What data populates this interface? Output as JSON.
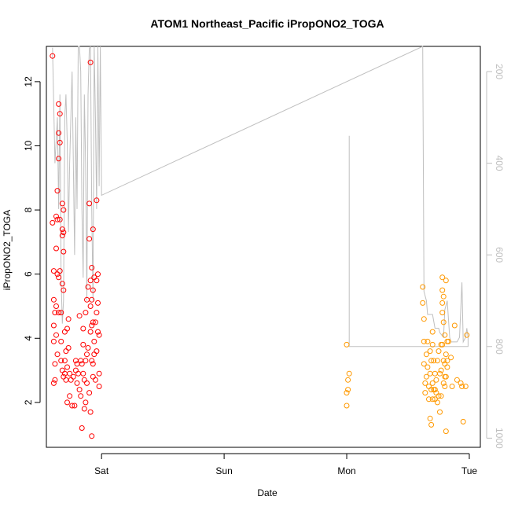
{
  "chart_data": {
    "type": "scatter",
    "title": "ATOM1 Northeast_Pacific iPropONO2_TOGA",
    "xlabel": "Date",
    "ylabel": "iPropONO2_TOGA",
    "x_ticks": [
      "Sat",
      "Sun",
      "Mon",
      "Tue"
    ],
    "x_tick_days": [
      1,
      2,
      3,
      4
    ],
    "xlim_days": [
      0.55,
      4.09
    ],
    "ylim": [
      0.6,
      13.1
    ],
    "y_ticks": [
      "2",
      "4",
      "6",
      "8",
      "10",
      "12"
    ],
    "y_tick_values": [
      2,
      4,
      6,
      8,
      10,
      12
    ],
    "right_axis": {
      "reversed": true,
      "lim": [
        145,
        1020
      ],
      "ticks": [
        "200",
        "400",
        "600",
        "800",
        "1000"
      ],
      "tick_values": [
        200,
        400,
        600,
        800,
        1000
      ],
      "color": "#bfbfbf"
    },
    "colors": {
      "series_1": "#ff0000",
      "series_2": "#ff9900",
      "pressure_line": "#bfbfbf"
    },
    "series": [
      {
        "points": [
          [
            0.6,
            12.8
          ],
          [
            0.6,
            7.6
          ],
          [
            0.61,
            6.1
          ],
          [
            0.61,
            5.2
          ],
          [
            0.61,
            4.4
          ],
          [
            0.61,
            3.9
          ],
          [
            0.61,
            2.6
          ],
          [
            0.62,
            4.8
          ],
          [
            0.62,
            3.2
          ],
          [
            0.62,
            2.7
          ],
          [
            0.63,
            7.8
          ],
          [
            0.63,
            6.8
          ],
          [
            0.63,
            5.0
          ],
          [
            0.63,
            4.1
          ],
          [
            0.64,
            8.6
          ],
          [
            0.64,
            7.7
          ],
          [
            0.64,
            6.0
          ],
          [
            0.64,
            3.5
          ],
          [
            0.65,
            11.3
          ],
          [
            0.65,
            10.4
          ],
          [
            0.65,
            9.6
          ],
          [
            0.65,
            5.9
          ],
          [
            0.65,
            4.8
          ],
          [
            0.66,
            11.0
          ],
          [
            0.66,
            10.1
          ],
          [
            0.66,
            7.7
          ],
          [
            0.66,
            6.1
          ],
          [
            0.67,
            3.3
          ],
          [
            0.67,
            4.8
          ],
          [
            0.67,
            3.9
          ],
          [
            0.68,
            8.2
          ],
          [
            0.68,
            7.4
          ],
          [
            0.68,
            7.2
          ],
          [
            0.68,
            5.7
          ],
          [
            0.68,
            3.0
          ],
          [
            0.69,
            8.0
          ],
          [
            0.69,
            7.3
          ],
          [
            0.69,
            6.7
          ],
          [
            0.69,
            5.5
          ],
          [
            0.69,
            2.8
          ],
          [
            0.7,
            4.2
          ],
          [
            0.7,
            3.3
          ],
          [
            0.7,
            2.9
          ],
          [
            0.71,
            3.6
          ],
          [
            0.71,
            2.7
          ],
          [
            0.72,
            4.3
          ],
          [
            0.72,
            3.1
          ],
          [
            0.72,
            2.0
          ],
          [
            0.73,
            4.6
          ],
          [
            0.73,
            3.7
          ],
          [
            0.74,
            2.9
          ],
          [
            0.74,
            2.2
          ],
          [
            0.75,
            2.7
          ],
          [
            0.76,
            1.9
          ],
          [
            0.77,
            2.8
          ],
          [
            0.78,
            1.9
          ],
          [
            0.79,
            3.3
          ],
          [
            0.79,
            3.0
          ],
          [
            0.8,
            2.6
          ],
          [
            0.8,
            3.2
          ],
          [
            0.81,
            2.9
          ],
          [
            0.82,
            4.7
          ],
          [
            0.82,
            2.4
          ],
          [
            0.83,
            3.3
          ],
          [
            0.83,
            2.2
          ],
          [
            0.84,
            3.2
          ],
          [
            0.84,
            1.2
          ],
          [
            0.85,
            4.3
          ],
          [
            0.85,
            3.8
          ],
          [
            0.85,
            2.9
          ],
          [
            0.86,
            2.7
          ],
          [
            0.86,
            1.8
          ],
          [
            0.87,
            4.8
          ],
          [
            0.87,
            3.3
          ],
          [
            0.87,
            2.0
          ],
          [
            0.88,
            5.2
          ],
          [
            0.88,
            3.5
          ],
          [
            0.88,
            2.6
          ],
          [
            0.89,
            5.6
          ],
          [
            0.89,
            3.7
          ],
          [
            0.9,
            8.2
          ],
          [
            0.9,
            7.1
          ],
          [
            0.9,
            2.3
          ],
          [
            0.91,
            12.6
          ],
          [
            0.91,
            5.8
          ],
          [
            0.91,
            5.0
          ],
          [
            0.91,
            4.2
          ],
          [
            0.91,
            1.7
          ],
          [
            0.92,
            6.2
          ],
          [
            0.92,
            5.2
          ],
          [
            0.92,
            4.4
          ],
          [
            0.92,
            3.3
          ],
          [
            0.92,
            0.95
          ],
          [
            0.93,
            7.4
          ],
          [
            0.93,
            5.5
          ],
          [
            0.93,
            4.5
          ],
          [
            0.93,
            3.2
          ],
          [
            0.93,
            2.8
          ],
          [
            0.94,
            5.9
          ],
          [
            0.94,
            3.9
          ],
          [
            0.94,
            3.5
          ],
          [
            0.95,
            4.5
          ],
          [
            0.95,
            2.7
          ],
          [
            0.96,
            8.3
          ],
          [
            0.96,
            5.8
          ],
          [
            0.96,
            4.8
          ],
          [
            0.96,
            3.6
          ],
          [
            0.97,
            6.0
          ],
          [
            0.97,
            5.1
          ],
          [
            0.97,
            4.2
          ],
          [
            0.98,
            4.1
          ],
          [
            0.98,
            2.9
          ],
          [
            0.98,
            2.5
          ]
        ]
      },
      {
        "points": [
          [
            3.0,
            3.8
          ],
          [
            3.0,
            2.3
          ],
          [
            3.0,
            1.9
          ],
          [
            3.01,
            2.7
          ],
          [
            3.01,
            2.4
          ],
          [
            3.02,
            2.9
          ],
          [
            3.62,
            5.6
          ],
          [
            3.62,
            5.1
          ],
          [
            3.63,
            4.6
          ],
          [
            3.63,
            3.9
          ],
          [
            3.63,
            3.2
          ],
          [
            3.64,
            2.6
          ],
          [
            3.64,
            2.3
          ],
          [
            3.65,
            3.5
          ],
          [
            3.65,
            2.8
          ],
          [
            3.66,
            3.9
          ],
          [
            3.66,
            3.1
          ],
          [
            3.67,
            2.5
          ],
          [
            3.67,
            2.1
          ],
          [
            3.68,
            3.6
          ],
          [
            3.68,
            2.9
          ],
          [
            3.68,
            1.5
          ],
          [
            3.69,
            3.3
          ],
          [
            3.69,
            2.4
          ],
          [
            3.69,
            1.3
          ],
          [
            3.7,
            4.2
          ],
          [
            3.7,
            3.8
          ],
          [
            3.7,
            2.6
          ],
          [
            3.7,
            2.1
          ],
          [
            3.71,
            3.3
          ],
          [
            3.71,
            2.4
          ],
          [
            3.72,
            2.1
          ],
          [
            3.72,
            2.4
          ],
          [
            3.72,
            2.9
          ],
          [
            3.73,
            2.3
          ],
          [
            3.73,
            2.7
          ],
          [
            3.74,
            3.3
          ],
          [
            3.74,
            2.0
          ],
          [
            3.75,
            3.6
          ],
          [
            3.75,
            2.2
          ],
          [
            3.76,
            2.9
          ],
          [
            3.76,
            1.7
          ],
          [
            3.77,
            3.8
          ],
          [
            3.77,
            3.0
          ],
          [
            3.77,
            2.2
          ],
          [
            3.78,
            5.9
          ],
          [
            3.78,
            5.5
          ],
          [
            3.78,
            5.1
          ],
          [
            3.78,
            4.8
          ],
          [
            3.78,
            3.8
          ],
          [
            3.79,
            5.3
          ],
          [
            3.79,
            4.5
          ],
          [
            3.79,
            3.3
          ],
          [
            3.79,
            2.6
          ],
          [
            3.8,
            4.1
          ],
          [
            3.8,
            3.2
          ],
          [
            3.8,
            2.5
          ],
          [
            3.8,
            2.8
          ],
          [
            3.81,
            5.8
          ],
          [
            3.81,
            3.5
          ],
          [
            3.81,
            2.8
          ],
          [
            3.81,
            1.1
          ],
          [
            3.82,
            3.9
          ],
          [
            3.82,
            3.3
          ],
          [
            3.82,
            3.1
          ],
          [
            3.83,
            3.9
          ],
          [
            3.85,
            3.4
          ],
          [
            3.86,
            2.5
          ],
          [
            3.88,
            4.4
          ],
          [
            3.9,
            2.7
          ],
          [
            3.93,
            2.6
          ],
          [
            3.94,
            2.5
          ],
          [
            3.95,
            1.4
          ],
          [
            3.97,
            2.5
          ],
          [
            3.98,
            4.1
          ]
        ]
      }
    ],
    "pressure_line": [
      [
        0.6,
        148
      ],
      [
        0.62,
        400
      ],
      [
        0.64,
        300
      ],
      [
        0.65,
        500
      ],
      [
        0.66,
        250
      ],
      [
        0.67,
        650
      ],
      [
        0.68,
        750
      ],
      [
        0.69,
        700
      ],
      [
        0.7,
        300
      ],
      [
        0.71,
        250
      ],
      [
        0.72,
        350
      ],
      [
        0.73,
        550
      ],
      [
        0.74,
        400
      ],
      [
        0.76,
        200
      ],
      [
        0.78,
        600
      ],
      [
        0.79,
        300
      ],
      [
        0.8,
        500
      ],
      [
        0.81,
        145
      ],
      [
        0.82,
        145
      ],
      [
        0.83,
        200
      ],
      [
        0.84,
        500
      ],
      [
        0.85,
        650
      ],
      [
        0.86,
        250
      ],
      [
        0.87,
        400
      ],
      [
        0.88,
        700
      ],
      [
        0.89,
        250
      ],
      [
        0.9,
        150
      ],
      [
        0.91,
        145
      ],
      [
        0.92,
        500
      ],
      [
        0.93,
        700
      ],
      [
        0.94,
        145
      ],
      [
        0.95,
        300
      ],
      [
        0.96,
        500
      ],
      [
        0.97,
        145
      ],
      [
        0.98,
        450
      ],
      [
        0.99,
        145
      ],
      [
        1.0,
        470
      ],
      [
        3.62,
        145
      ],
      [
        3.63,
        680
      ],
      [
        3.65,
        700
      ],
      [
        3.66,
        730
      ],
      [
        3.7,
        730
      ],
      [
        3.72,
        760
      ],
      [
        3.75,
        760
      ],
      [
        3.76,
        770
      ],
      [
        3.79,
        780
      ],
      [
        3.8,
        720
      ],
      [
        3.82,
        700
      ],
      [
        3.84,
        780
      ],
      [
        3.85,
        790
      ],
      [
        3.9,
        790
      ],
      [
        3.92,
        780
      ],
      [
        3.94,
        660
      ],
      [
        3.95,
        790
      ],
      [
        3.97,
        780
      ],
      [
        3.98,
        760
      ],
      [
        3.99,
        780
      ],
      [
        3.99,
        800
      ],
      [
        3.02,
        800
      ],
      [
        3.02,
        780
      ],
      [
        3.02,
        340
      ]
    ]
  }
}
